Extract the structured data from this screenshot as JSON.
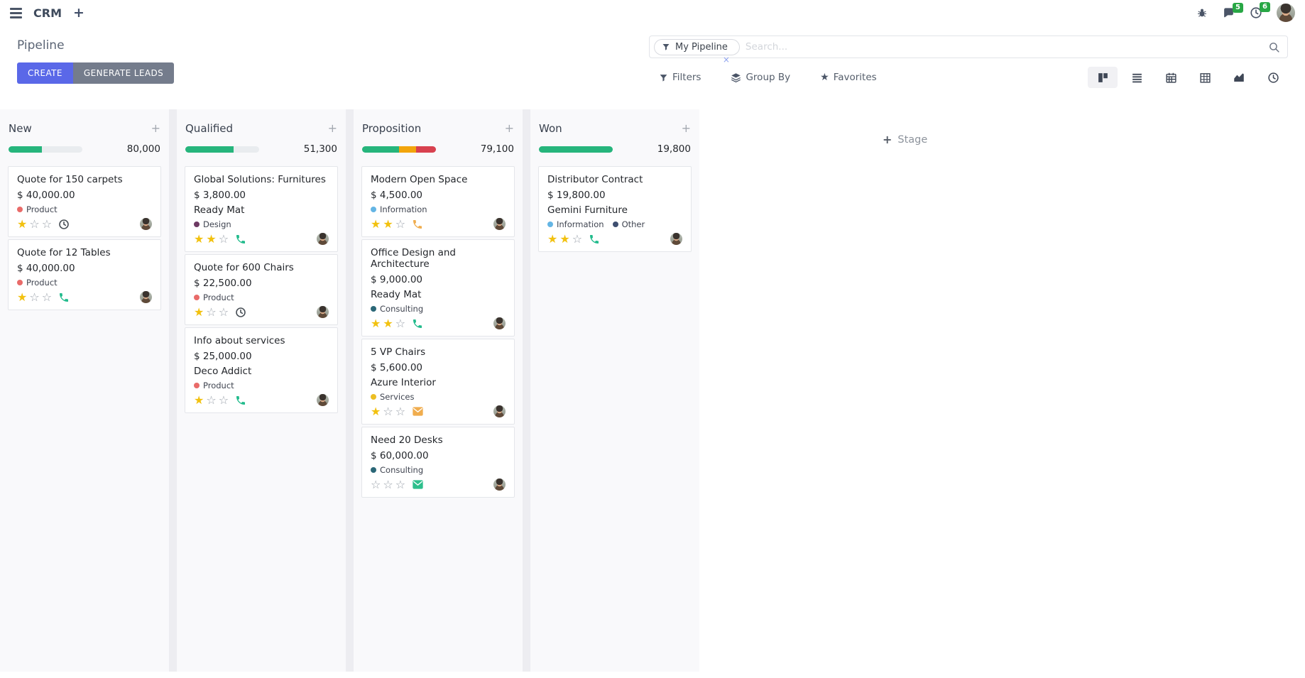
{
  "navbar": {
    "app_name": "CRM",
    "messages_badge": "5",
    "activities_badge": "6",
    "icons": [
      "apps-menu-icon",
      "add-menu-icon",
      "bug-icon",
      "messages-icon",
      "activities-clock-icon",
      "user-avatar"
    ]
  },
  "control_panel": {
    "title": "Pipeline",
    "create_label": "CREATE",
    "generate_leads_label": "GENERATE LEADS",
    "search": {
      "facet": "My Pipeline",
      "placeholder": "Search...",
      "facet_remove": "×"
    },
    "filters_label": "Filters",
    "group_by_label": "Group By",
    "favorites_label": "Favorites",
    "view_switcher": [
      "kanban",
      "list",
      "calendar",
      "pivot",
      "graph",
      "activity"
    ],
    "active_view": "kanban"
  },
  "colors": {
    "primary_button": "#5a68e8",
    "secondary_button": "#747c8c",
    "badge_green": "#28a745",
    "progress_green": "#26b57c",
    "progress_orange": "#f2a50c",
    "progress_red": "#d8414f",
    "progress_track": "#e9ecef",
    "star_gold": "#f2c10f"
  },
  "kanban": {
    "add_stage_label": "Stage",
    "columns": [
      {
        "name": "New",
        "total": "80,000",
        "progress": [
          {
            "color": "#26b57c",
            "pct": 45
          }
        ],
        "cards": [
          {
            "title": "Quote for 150 carpets",
            "amount": "$ 40,000.00",
            "tags": [
              {
                "color": "#e96b69",
                "label": "Product"
              }
            ],
            "stars": 1,
            "activity": {
              "type": "clock",
              "color": "#495057"
            }
          },
          {
            "title": "Quote for 12 Tables",
            "amount": "$ 40,000.00",
            "tags": [
              {
                "color": "#e96b69",
                "label": "Product"
              }
            ],
            "stars": 1,
            "activity": {
              "type": "phone",
              "color": "#21bb8c"
            }
          }
        ]
      },
      {
        "name": "Qualified",
        "total": "51,300",
        "progress": [
          {
            "color": "#26b57c",
            "pct": 65
          }
        ],
        "cards": [
          {
            "title": "Global Solutions: Furnitures",
            "amount": "$ 3,800.00",
            "company": "Ready Mat",
            "tags": [
              {
                "color": "#6d3a63",
                "label": "Design"
              }
            ],
            "stars": 2,
            "activity": {
              "type": "phone",
              "color": "#21bb8c"
            }
          },
          {
            "title": "Quote for 600 Chairs",
            "amount": "$ 22,500.00",
            "tags": [
              {
                "color": "#e96b69",
                "label": "Product"
              }
            ],
            "stars": 1,
            "activity": {
              "type": "clock",
              "color": "#495057"
            }
          },
          {
            "title": "Info about services",
            "amount": "$ 25,000.00",
            "company": "Deco Addict",
            "tags": [
              {
                "color": "#e96b69",
                "label": "Product"
              }
            ],
            "stars": 1,
            "activity": {
              "type": "phone",
              "color": "#21bb8c"
            }
          }
        ]
      },
      {
        "name": "Proposition",
        "total": "79,100",
        "progress": [
          {
            "color": "#26b57c",
            "pct": 50
          },
          {
            "color": "#f2a50c",
            "pct": 23
          },
          {
            "color": "#d8414f",
            "pct": 27
          }
        ],
        "cards": [
          {
            "title": "Modern Open Space",
            "amount": "$ 4,500.00",
            "tags": [
              {
                "color": "#64b5e4",
                "label": "Information"
              }
            ],
            "stars": 2,
            "activity": {
              "type": "phone",
              "color": "#f0ad4e"
            }
          },
          {
            "title": "Office Design and Architecture",
            "amount": "$ 9,000.00",
            "company": "Ready Mat",
            "tags": [
              {
                "color": "#2b6777",
                "label": "Consulting"
              }
            ],
            "stars": 2,
            "activity": {
              "type": "phone",
              "color": "#21bb8c"
            }
          },
          {
            "title": "5 VP Chairs",
            "amount": "$ 5,600.00",
            "company": "Azure Interior",
            "tags": [
              {
                "color": "#ecbe23",
                "label": "Services"
              }
            ],
            "stars": 1,
            "activity": {
              "type": "mail",
              "color": "#f0ad4e"
            }
          },
          {
            "title": "Need 20 Desks",
            "amount": "$ 60,000.00",
            "tags": [
              {
                "color": "#2b6777",
                "label": "Consulting"
              }
            ],
            "stars": 0,
            "activity": {
              "type": "mail",
              "color": "#2dbf8c"
            }
          }
        ]
      },
      {
        "name": "Won",
        "total": "19,800",
        "progress": [
          {
            "color": "#26b57c",
            "pct": 100
          }
        ],
        "cards": [
          {
            "title": "Distributor Contract",
            "amount": "$ 19,800.00",
            "company": "Gemini Furniture",
            "tags": [
              {
                "color": "#64b5e4",
                "label": "Information"
              },
              {
                "color": "#3e4f70",
                "label": "Other"
              }
            ],
            "stars": 2,
            "activity": {
              "type": "phone",
              "color": "#21bb8c"
            }
          }
        ]
      }
    ]
  }
}
